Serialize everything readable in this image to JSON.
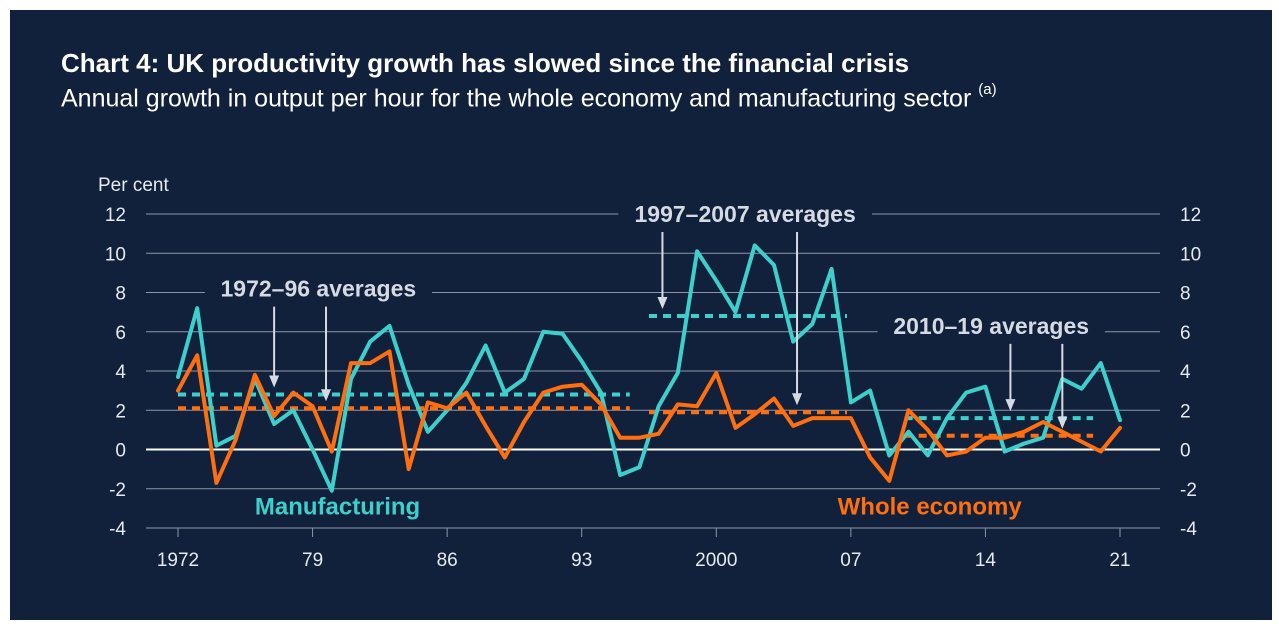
{
  "title": "Chart 4: UK productivity growth has slowed since the financial crisis",
  "subtitle": "Annual growth in output per hour for the whole economy and manufacturing sector",
  "subtitle_note": "(a)",
  "colors": {
    "background": "#11213b",
    "manufacturing": "#3dcfcb",
    "whole_economy": "#ff6f0f",
    "text": "#ffffff",
    "axis_text": "#e6e9ef",
    "gridline": "#8d96a8",
    "zero_line": "#ffffff",
    "annotation": "#d5dae3"
  },
  "chart_data": {
    "type": "line",
    "ylabel": "Per cent",
    "ylim": [
      -4,
      12
    ],
    "yticks": [
      -4,
      -2,
      0,
      2,
      4,
      6,
      8,
      10,
      12
    ],
    "xlim": [
      1972,
      2021
    ],
    "xticks": [
      {
        "value": 1972,
        "label": "1972"
      },
      {
        "value": 1979,
        "label": "79"
      },
      {
        "value": 1986,
        "label": "86"
      },
      {
        "value": 1993,
        "label": "93"
      },
      {
        "value": 2000,
        "label": "2000"
      },
      {
        "value": 2007,
        "label": "07"
      },
      {
        "value": 2014,
        "label": "14"
      },
      {
        "value": 2021,
        "label": "21"
      }
    ],
    "grid": true,
    "dual_y_axis": true,
    "series": [
      {
        "name": "Manufacturing",
        "color": "#3dcfcb",
        "x": [
          1972,
          1973,
          1974,
          1975,
          1976,
          1977,
          1978,
          1979,
          1980,
          1981,
          1982,
          1983,
          1984,
          1985,
          1986,
          1987,
          1988,
          1989,
          1990,
          1991,
          1992,
          1993,
          1994,
          1995,
          1996,
          1997,
          1998,
          1999,
          2000,
          2001,
          2002,
          2003,
          2004,
          2005,
          2006,
          2007,
          2008,
          2009,
          2010,
          2011,
          2012,
          2013,
          2014,
          2015,
          2016,
          2017,
          2018,
          2019,
          2020,
          2021
        ],
        "values": [
          3.7,
          7.2,
          0.2,
          0.7,
          3.6,
          1.3,
          2.0,
          0.0,
          -2.1,
          3.6,
          5.5,
          6.3,
          3.3,
          0.9,
          2.0,
          3.4,
          5.3,
          2.9,
          3.6,
          6.0,
          5.9,
          4.5,
          2.9,
          -1.3,
          -0.9,
          2.2,
          3.9,
          10.1,
          8.6,
          7.0,
          10.4,
          9.4,
          5.5,
          6.4,
          9.2,
          2.4,
          3.0,
          -0.3,
          0.9,
          -0.3,
          1.6,
          2.9,
          3.2,
          -0.1,
          0.3,
          0.6,
          3.6,
          3.1,
          4.4,
          1.5
        ]
      },
      {
        "name": "Whole economy",
        "color": "#ff6f0f",
        "x": [
          1972,
          1973,
          1974,
          1975,
          1976,
          1977,
          1978,
          1979,
          1980,
          1981,
          1982,
          1983,
          1984,
          1985,
          1986,
          1987,
          1988,
          1989,
          1990,
          1991,
          1992,
          1993,
          1994,
          1995,
          1996,
          1997,
          1998,
          1999,
          2000,
          2001,
          2002,
          2003,
          2004,
          2005,
          2006,
          2007,
          2008,
          2009,
          2010,
          2011,
          2012,
          2013,
          2014,
          2015,
          2016,
          2017,
          2018,
          2019,
          2020,
          2021
        ],
        "values": [
          3.0,
          4.8,
          -1.7,
          0.5,
          3.8,
          1.7,
          2.9,
          2.2,
          -0.1,
          4.4,
          4.4,
          5.0,
          -1.0,
          2.4,
          2.1,
          2.9,
          1.2,
          -0.4,
          1.4,
          2.9,
          3.2,
          3.3,
          2.3,
          0.6,
          0.6,
          0.8,
          2.3,
          2.2,
          3.9,
          1.1,
          1.8,
          2.6,
          1.2,
          1.6,
          1.6,
          1.6,
          -0.4,
          -1.6,
          2.0,
          1.0,
          -0.3,
          -0.1,
          0.6,
          0.6,
          0.9,
          1.4,
          0.9,
          0.4,
          -0.1,
          1.1
        ]
      }
    ],
    "averages": [
      {
        "series": "Manufacturing",
        "from": 1972,
        "to": 1995.5,
        "value": 2.8
      },
      {
        "series": "Whole economy",
        "from": 1972,
        "to": 1995.5,
        "value": 2.1
      },
      {
        "series": "Manufacturing",
        "from": 1996.5,
        "to": 2006.8,
        "value": 6.8
      },
      {
        "series": "Whole economy",
        "from": 1996.5,
        "to": 2006.8,
        "value": 1.9
      },
      {
        "series": "Manufacturing",
        "from": 2009.8,
        "to": 2019.6,
        "value": 1.6
      },
      {
        "series": "Whole economy",
        "from": 2009.8,
        "to": 2019.6,
        "value": 0.7
      }
    ],
    "annotations": [
      {
        "text": "1972–96 averages",
        "x": 1979.3,
        "y": 8.2,
        "arrows": [
          [
            1977.0,
            2.8
          ],
          [
            1979.7,
            2.1
          ]
        ]
      },
      {
        "text": "1997–2007 averages",
        "x": 2001.5,
        "y": 12.0,
        "arrows": [
          [
            1997.2,
            6.8
          ],
          [
            2004.2,
            1.9
          ]
        ]
      },
      {
        "text": "2010–19 averages",
        "x": 2014.3,
        "y": 6.3,
        "arrows": [
          [
            2015.3,
            1.6
          ],
          [
            2018.0,
            0.7
          ]
        ]
      }
    ],
    "series_labels": [
      {
        "text": "Manufacturing",
        "series": "Manufacturing",
        "x": 1980.3,
        "y": -2.9
      },
      {
        "text": "Whole economy",
        "series": "Whole economy",
        "x": 2011.1,
        "y": -2.9
      }
    ]
  }
}
